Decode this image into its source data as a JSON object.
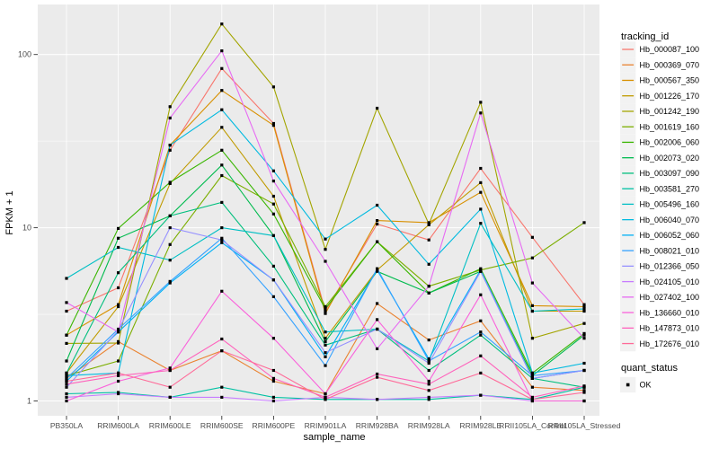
{
  "figure": {
    "background": "#FFFFFF",
    "panel_background": "#EBEBEB",
    "grid_major_color": "#FFFFFF",
    "grid_minor_color": "#F7F7F7",
    "tick_color": "#333333",
    "axis_text_color": "#4D4D4D",
    "title_color": "#000000",
    "point_color": "#000000",
    "legend_key_background": "#F2F2F2"
  },
  "chart_data": {
    "type": "line",
    "title": "",
    "xlabel": "sample_name",
    "ylabel": "FPKM + 1",
    "y_scale": "log10",
    "y_ticks": [
      1,
      10,
      100
    ],
    "y_tick_labels": [
      "1",
      "10",
      "100"
    ],
    "y_minor_breaks": [
      3.1623,
      31.623
    ],
    "ylim": [
      0.82,
      195
    ],
    "grid": true,
    "legend_position": "right",
    "categories": [
      "PB350LA",
      "RRIM600LA",
      "RRIM600LE",
      "RRIM600SE",
      "RRIM600PE",
      "RRIM901LA",
      "RRIM928BA",
      "RRIM928LA",
      "RRIM928LE",
      "RRII105LA_Control",
      "RRII105LA_Stressed"
    ],
    "legend": {
      "color_title": "tracking_id",
      "shape_title": "quant_status",
      "shape_items": [
        {
          "label": "OK",
          "marker": "black-square"
        }
      ]
    },
    "series": [
      {
        "name": "Hb_000087_100",
        "color": "#F8766D",
        "quant_status": "OK",
        "values": [
          3.3,
          4.5,
          28,
          83,
          40,
          3.3,
          10.5,
          8.5,
          22,
          8.8,
          3.6
        ]
      },
      {
        "name": "Hb_000369_070",
        "color": "#EA8331",
        "quant_status": "OK",
        "values": [
          1.35,
          2.2,
          1.5,
          1.95,
          1.3,
          1.1,
          3.65,
          2.25,
          2.9,
          1.2,
          1.15
        ]
      },
      {
        "name": "Hb_000567_350",
        "color": "#D89000",
        "quant_status": "OK",
        "values": [
          2.4,
          3.6,
          30,
          62,
          39,
          3.2,
          11,
          10.7,
          16,
          3.55,
          3.5
        ]
      },
      {
        "name": "Hb_001226_170",
        "color": "#C09B00",
        "quant_status": "OK",
        "values": [
          1.45,
          3.5,
          18,
          38,
          15.2,
          2.3,
          5.7,
          10.4,
          18.2,
          3.3,
          3.3
        ]
      },
      {
        "name": "Hb_001242_190",
        "color": "#A3A500",
        "quant_status": "OK",
        "values": [
          2.15,
          2.16,
          50,
          150,
          65,
          7.5,
          49,
          10.5,
          53,
          2.3,
          2.8
        ]
      },
      {
        "name": "Hb_001619_160",
        "color": "#7CAE00",
        "quant_status": "OK",
        "values": [
          1.4,
          1.7,
          8,
          20,
          13.7,
          3.5,
          8.3,
          4.6,
          5.7,
          6.7,
          10.7
        ]
      },
      {
        "name": "Hb_002006_060",
        "color": "#39B600",
        "quant_status": "OK",
        "values": [
          2.4,
          9.9,
          18.3,
          28,
          12,
          3.4,
          8.3,
          4.2,
          5.8,
          1.45,
          2.45
        ]
      },
      {
        "name": "Hb_002073_020",
        "color": "#00BB4E",
        "quant_status": "OK",
        "values": [
          1.7,
          8.7,
          11.7,
          23,
          9,
          2.2,
          5.6,
          4.2,
          5.6,
          1.4,
          2.4
        ]
      },
      {
        "name": "Hb_003097_090",
        "color": "#00BF7D",
        "quant_status": "OK",
        "values": [
          1.45,
          5.5,
          11.7,
          14,
          6,
          2.1,
          2.6,
          1.5,
          2.4,
          1.35,
          1.2
        ]
      },
      {
        "name": "Hb_003581_270",
        "color": "#00C1A3",
        "quant_status": "OK",
        "values": [
          1.1,
          1.12,
          1.05,
          1.2,
          1.05,
          1.02,
          1.02,
          1.02,
          1.08,
          1.02,
          1.2
        ]
      },
      {
        "name": "Hb_005496_160",
        "color": "#00BFC4",
        "quant_status": "OK",
        "values": [
          5.1,
          7.7,
          6.5,
          10,
          9,
          2.5,
          2.6,
          1.7,
          10.6,
          3.3,
          3.4
        ]
      },
      {
        "name": "Hb_006040_070",
        "color": "#00BAE0",
        "quant_status": "OK",
        "values": [
          1.4,
          1.45,
          30,
          48,
          21.3,
          8.6,
          13.5,
          6.15,
          12.8,
          1.45,
          1.65
        ]
      },
      {
        "name": "Hb_006052_060",
        "color": "#00B0F6",
        "quant_status": "OK",
        "values": [
          1.3,
          2.5,
          4.8,
          8.2,
          5,
          1.8,
          5.7,
          1.75,
          5.7,
          1.35,
          1.5
        ]
      },
      {
        "name": "Hb_008021_010",
        "color": "#35A2FF",
        "quant_status": "OK",
        "values": [
          1.35,
          2.6,
          4.9,
          8.7,
          4,
          1.6,
          5.8,
          1.7,
          2.5,
          1.4,
          1.5
        ]
      },
      {
        "name": "Hb_012366_050",
        "color": "#9590FF",
        "quant_status": "OK",
        "values": [
          1.2,
          2.55,
          10,
          8.5,
          5,
          1.9,
          2.6,
          1.65,
          5.6,
          1.35,
          1.5
        ]
      },
      {
        "name": "Hb_024105_010",
        "color": "#C77CFF",
        "quant_status": "OK",
        "values": [
          1.05,
          1.1,
          1.05,
          1.05,
          1.0,
          1.05,
          1.02,
          1.05,
          1.08,
          1.0,
          1.0
        ]
      },
      {
        "name": "Hb_027402_100",
        "color": "#E76BF3",
        "quant_status": "OK",
        "values": [
          3.7,
          2.5,
          43,
          105,
          18.6,
          6.4,
          2.0,
          4.6,
          46,
          4.8,
          2.3
        ]
      },
      {
        "name": "Hb_136660_010",
        "color": "#FA62DB",
        "quant_status": "OK",
        "values": [
          1.0,
          1.3,
          1.55,
          4.3,
          2.3,
          1.1,
          2.95,
          1.3,
          4.1,
          1.0,
          1.0
        ]
      },
      {
        "name": "Hb_147873_010",
        "color": "#FF62BC",
        "quant_status": "OK",
        "values": [
          1.25,
          1.4,
          1.5,
          2.28,
          1.35,
          1.05,
          1.43,
          1.25,
          1.82,
          1.05,
          1.22
        ]
      },
      {
        "name": "Hb_172676_010",
        "color": "#FF6A98",
        "quant_status": "OK",
        "values": [
          1.3,
          1.45,
          1.2,
          1.95,
          1.5,
          1.02,
          1.37,
          1.15,
          1.45,
          1.02,
          1.12
        ]
      }
    ]
  }
}
